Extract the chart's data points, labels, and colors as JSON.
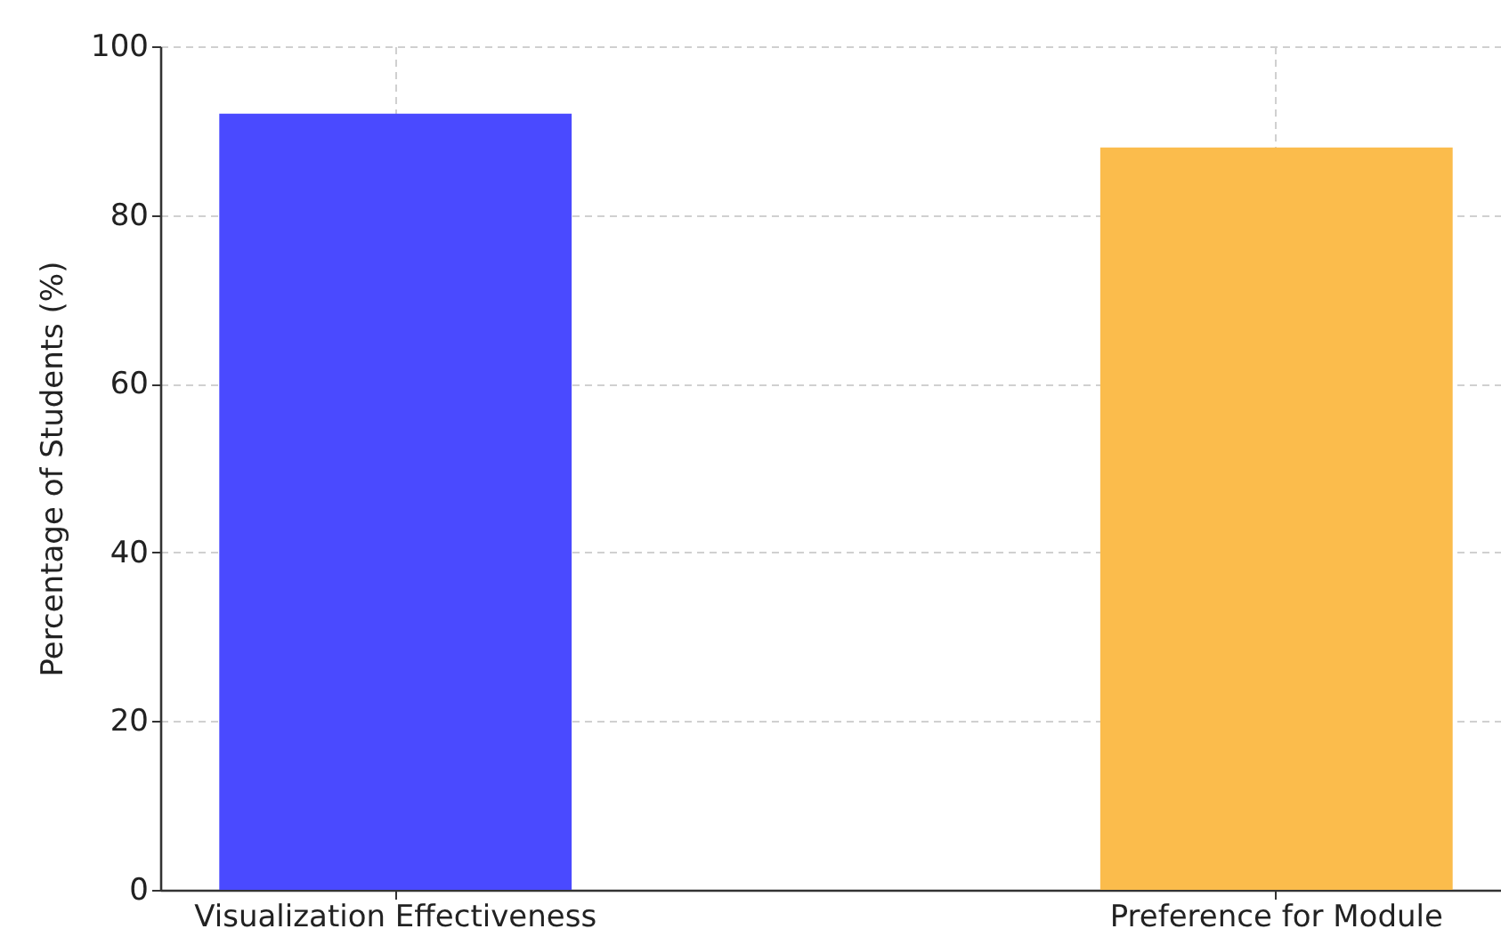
{
  "chart_data": {
    "type": "bar",
    "ylabel": "Percentage of Students (%)",
    "categories": [
      "Visualization Effectiveness",
      "Preference for Module"
    ],
    "values": [
      92,
      88
    ],
    "colors": [
      "#4a4aff",
      "#fbbc4c"
    ],
    "ylim": [
      0,
      100
    ],
    "yticks": [
      0,
      20,
      40,
      60,
      80,
      100
    ],
    "grid": true
  }
}
